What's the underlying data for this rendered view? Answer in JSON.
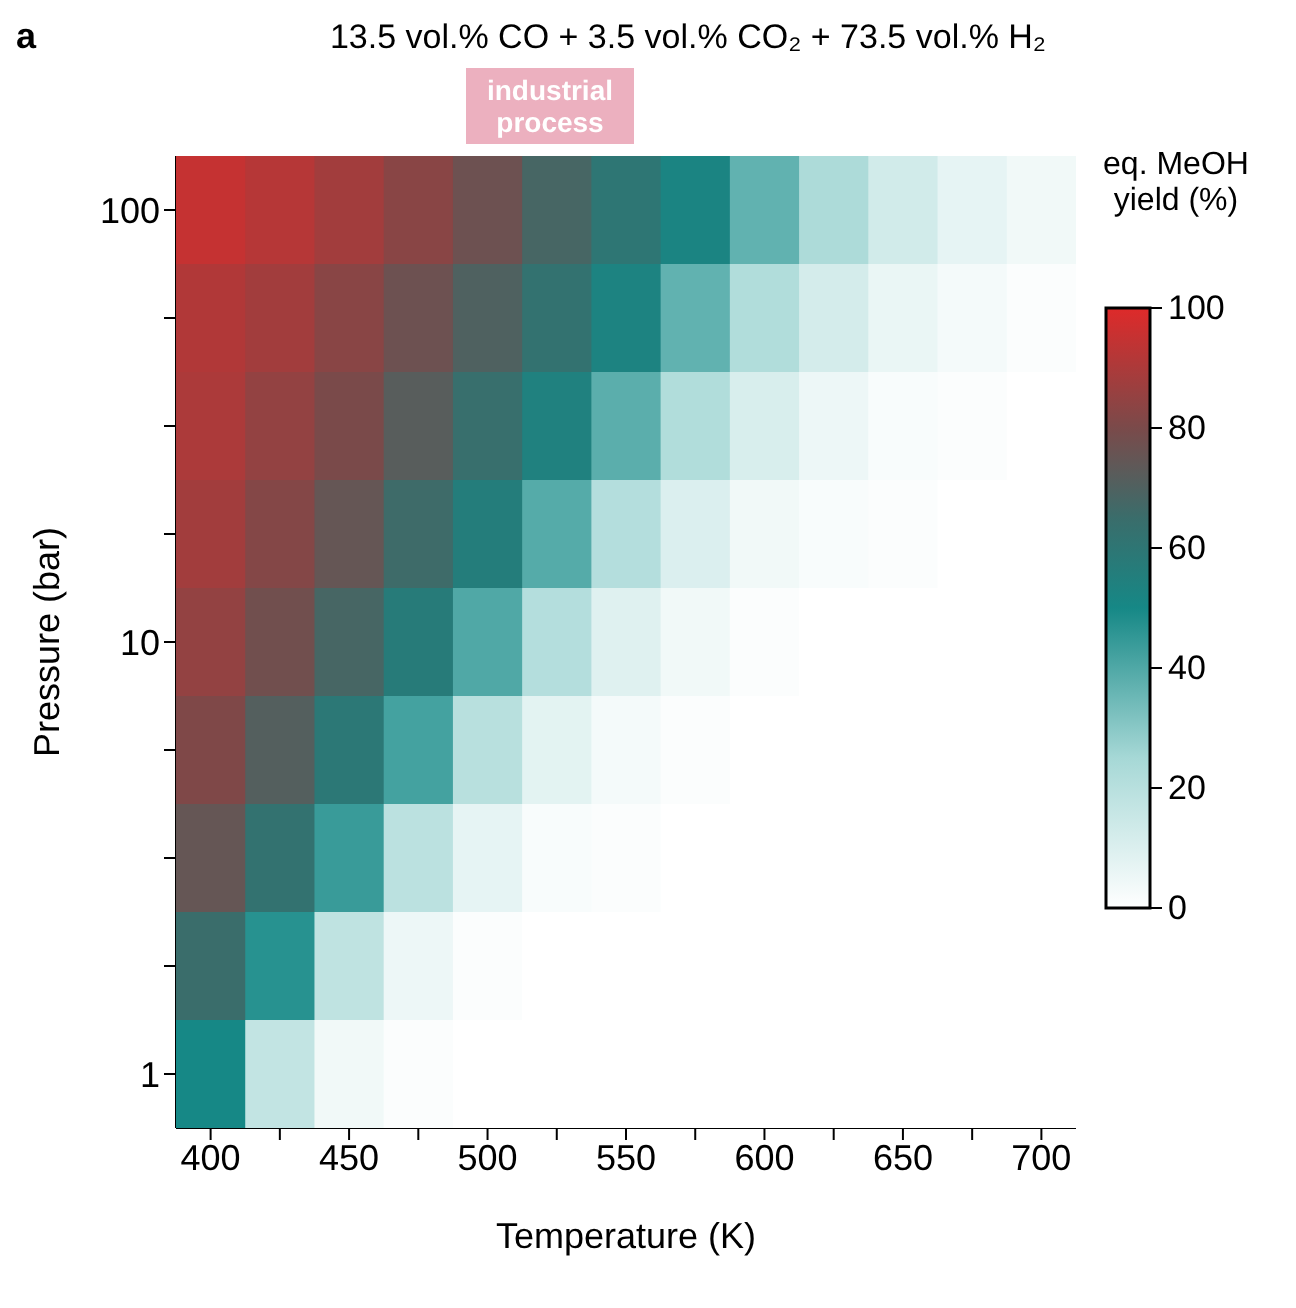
{
  "chart_data": {
    "type": "heatmap",
    "title": "13.5 vol.% CO + 3.5 vol.% CO₂ + 73.5 vol.% H₂",
    "xlabel": "Temperature (K)",
    "ylabel": "Pressure (bar)",
    "clabel": "eq. MeOH yield (%)",
    "categories": [
      "400",
      null,
      "450",
      null,
      "500",
      null,
      "550",
      null,
      "600",
      null,
      "650",
      null,
      "700"
    ],
    "y_categories": [
      "100",
      null,
      null,
      null,
      "10",
      null,
      null,
      null,
      "1"
    ],
    "cells": [
      [
        95,
        92,
        88,
        83,
        77,
        68,
        60,
        52,
        37,
        23,
        13,
        7,
        4
      ],
      [
        91,
        88,
        83,
        77,
        70,
        62,
        53,
        37,
        22,
        12,
        6,
        3,
        1
      ],
      [
        90,
        85,
        80,
        72,
        64,
        54,
        38,
        22,
        11,
        5,
        2,
        1,
        0
      ],
      [
        88,
        82,
        75,
        66,
        56,
        39,
        21,
        10,
        4,
        2,
        1,
        0,
        0
      ],
      [
        85,
        78,
        68,
        57,
        40,
        21,
        9,
        4,
        1,
        0,
        0,
        0,
        0
      ],
      [
        81,
        71,
        59,
        42,
        20,
        8,
        3,
        1,
        0,
        0,
        0,
        0,
        0
      ],
      [
        75,
        62,
        44,
        19,
        7,
        2,
        1,
        0,
        0,
        0,
        0,
        0,
        0
      ],
      [
        65,
        47,
        18,
        5,
        1,
        0,
        0,
        0,
        0,
        0,
        0,
        0,
        0
      ],
      [
        50,
        17,
        4,
        1,
        0,
        0,
        0,
        0,
        0,
        0,
        0,
        0,
        0
      ]
    ],
    "clim": [
      0,
      100
    ],
    "cticks": [
      0,
      20,
      40,
      60,
      80,
      100
    ],
    "annotations": [
      "a",
      "industrial process"
    ]
  }
}
